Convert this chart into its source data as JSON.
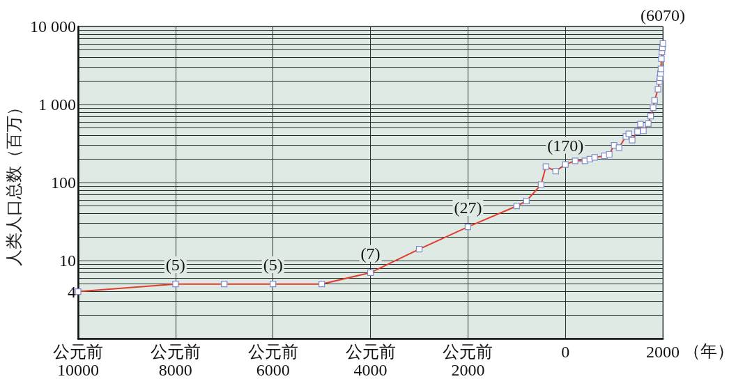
{
  "chart_data": {
    "type": "line",
    "ylabel": "人类人口总数（百万）",
    "xlabel": "（年）",
    "x": [
      -10000,
      -8000,
      -7000,
      -6000,
      -5000,
      -4000,
      -3000,
      -2000,
      -1000,
      -800,
      -500,
      -400,
      -200,
      0,
      200,
      400,
      500,
      600,
      800,
      900,
      1000,
      1100,
      1240,
      1300,
      1370,
      1480,
      1540,
      1600,
      1700,
      1750,
      1800,
      1830,
      1900,
      1930,
      1940,
      1950,
      1960,
      1970,
      1980,
      1990,
      2000
    ],
    "series": [
      {
        "color": "#e23d2b",
        "values": [
          4,
          5,
          5,
          5,
          5,
          7,
          14,
          27,
          50,
          58,
          94,
          160,
          140,
          170,
          190,
          190,
          200,
          210,
          220,
          230,
          300,
          280,
          390,
          420,
          350,
          450,
          560,
          460,
          570,
          710,
          910,
          1130,
          1570,
          1970,
          2200,
          2510,
          2860,
          3860,
          4720,
          5320,
          6070
        ],
        "value_labels": [
          null,
          "(5)",
          null,
          "(5)",
          null,
          "(7)",
          null,
          "(27)",
          null,
          null,
          null,
          null,
          null,
          "(170)",
          null,
          null,
          null,
          null,
          null,
          null,
          null,
          null,
          null,
          null,
          null,
          null,
          null,
          null,
          null,
          null,
          null,
          null,
          null,
          null,
          null,
          null,
          null,
          null,
          null,
          null,
          "(6070)"
        ]
      }
    ],
    "xlim": [
      -10000,
      2000
    ],
    "xticks": [
      {
        "value": -10000,
        "label": "公元前\n10000"
      },
      {
        "value": -8000,
        "label": "公元前\n8000"
      },
      {
        "value": -6000,
        "label": "公元前\n6000"
      },
      {
        "value": -4000,
        "label": "公元前\n4000"
      },
      {
        "value": -2000,
        "label": "公元前\n2000"
      },
      0,
      2000
    ],
    "ylim": [
      1,
      10000
    ],
    "yticks": [
      4,
      10,
      100,
      {
        "value": 1000,
        "label": "1 000"
      },
      {
        "value": 10000,
        "label": "10 000"
      }
    ],
    "log": "y",
    "grid": true,
    "marker": "square",
    "line_style": "solid"
  }
}
